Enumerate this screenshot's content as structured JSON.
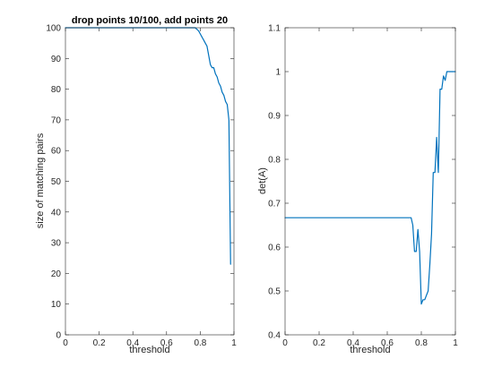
{
  "chart_data": [
    {
      "type": "line",
      "title": "drop points 10/100, add points 20",
      "xlabel": "threshold",
      "ylabel": "size of matching pairs",
      "xlim": [
        0,
        1
      ],
      "ylim": [
        0,
        100
      ],
      "xticks": [
        0,
        0.2,
        0.4,
        0.6,
        0.8,
        1
      ],
      "xtick_labels": [
        "0",
        "0.2",
        "0.4",
        "0.6",
        "0.8",
        "1"
      ],
      "yticks": [
        0,
        10,
        20,
        30,
        40,
        50,
        60,
        70,
        80,
        90,
        100
      ],
      "ytick_labels": [
        "0",
        "10",
        "20",
        "30",
        "40",
        "50",
        "60",
        "70",
        "80",
        "90",
        "100"
      ],
      "grid": false,
      "series": [
        {
          "color": "#0072bd",
          "x": [
            0,
            0.77,
            0.79,
            0.8,
            0.81,
            0.82,
            0.83,
            0.84,
            0.85,
            0.86,
            0.87,
            0.88,
            0.89,
            0.9,
            0.91,
            0.92,
            0.93,
            0.94,
            0.95,
            0.96,
            0.97,
            0.98
          ],
          "y": [
            100,
            100,
            99,
            98,
            97,
            96,
            95,
            94,
            91,
            88,
            87,
            87,
            85,
            84,
            82,
            81,
            79,
            78,
            76,
            75,
            70,
            23
          ]
        }
      ]
    },
    {
      "type": "line",
      "title": "",
      "xlabel": "threshold",
      "ylabel": "det(A)",
      "xlim": [
        0,
        1
      ],
      "ylim": [
        0.4,
        1.1
      ],
      "xticks": [
        0,
        0.2,
        0.4,
        0.6,
        0.8,
        1
      ],
      "xtick_labels": [
        "0",
        "0.2",
        "0.4",
        "0.6",
        "0.8",
        "1"
      ],
      "yticks": [
        0.4,
        0.5,
        0.6,
        0.7,
        0.8,
        0.9,
        1,
        1.1
      ],
      "ytick_labels": [
        "0.4",
        "0.5",
        "0.6",
        "0.7",
        "0.8",
        "0.9",
        "1",
        "1.1"
      ],
      "grid": false,
      "series": [
        {
          "color": "#0072bd",
          "x": [
            0,
            0.74,
            0.75,
            0.76,
            0.77,
            0.78,
            0.79,
            0.8,
            0.81,
            0.82,
            0.83,
            0.84,
            0.85,
            0.86,
            0.87,
            0.88,
            0.89,
            0.9,
            0.91,
            0.92,
            0.93,
            0.94,
            0.95,
            0.96,
            0.97,
            1.0
          ],
          "y": [
            0.667,
            0.667,
            0.65,
            0.59,
            0.59,
            0.64,
            0.59,
            0.47,
            0.48,
            0.48,
            0.49,
            0.5,
            0.56,
            0.63,
            0.77,
            0.77,
            0.85,
            0.77,
            0.96,
            0.96,
            0.99,
            0.98,
            1.0,
            1.0,
            1.0,
            1.0
          ]
        }
      ]
    }
  ]
}
